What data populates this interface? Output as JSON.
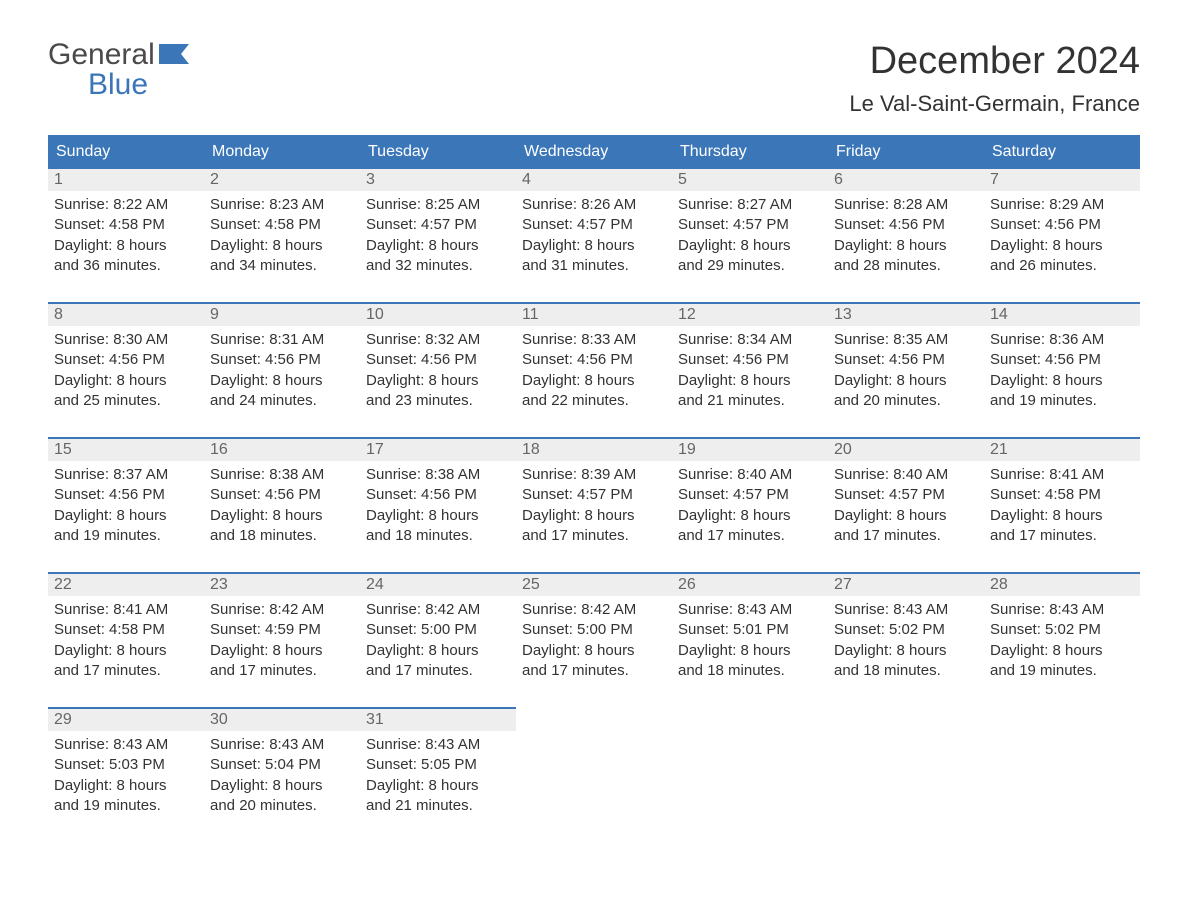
{
  "brand": {
    "general": "General",
    "blue": "Blue"
  },
  "title": "December 2024",
  "location": "Le Val-Saint-Germain, France",
  "colors": {
    "header_bg": "#3a76b8",
    "header_text": "#ffffff",
    "daynum_bg": "#eeeeee",
    "daynum_text": "#666666",
    "body_text": "#333333",
    "border": "#3a76b8",
    "page_bg": "#ffffff",
    "logo_gray": "#4a4a4a",
    "logo_blue": "#3a76b8"
  },
  "layout": {
    "columns": 7,
    "cell_font_size_pt": 11,
    "header_font_size_pt": 12,
    "title_font_size_pt": 28,
    "location_font_size_pt": 16
  },
  "day_headers": [
    "Sunday",
    "Monday",
    "Tuesday",
    "Wednesday",
    "Thursday",
    "Friday",
    "Saturday"
  ],
  "weeks": [
    [
      {
        "n": "1",
        "sunrise": "Sunrise: 8:22 AM",
        "sunset": "Sunset: 4:58 PM",
        "daylight": "Daylight: 8 hours and 36 minutes."
      },
      {
        "n": "2",
        "sunrise": "Sunrise: 8:23 AM",
        "sunset": "Sunset: 4:58 PM",
        "daylight": "Daylight: 8 hours and 34 minutes."
      },
      {
        "n": "3",
        "sunrise": "Sunrise: 8:25 AM",
        "sunset": "Sunset: 4:57 PM",
        "daylight": "Daylight: 8 hours and 32 minutes."
      },
      {
        "n": "4",
        "sunrise": "Sunrise: 8:26 AM",
        "sunset": "Sunset: 4:57 PM",
        "daylight": "Daylight: 8 hours and 31 minutes."
      },
      {
        "n": "5",
        "sunrise": "Sunrise: 8:27 AM",
        "sunset": "Sunset: 4:57 PM",
        "daylight": "Daylight: 8 hours and 29 minutes."
      },
      {
        "n": "6",
        "sunrise": "Sunrise: 8:28 AM",
        "sunset": "Sunset: 4:56 PM",
        "daylight": "Daylight: 8 hours and 28 minutes."
      },
      {
        "n": "7",
        "sunrise": "Sunrise: 8:29 AM",
        "sunset": "Sunset: 4:56 PM",
        "daylight": "Daylight: 8 hours and 26 minutes."
      }
    ],
    [
      {
        "n": "8",
        "sunrise": "Sunrise: 8:30 AM",
        "sunset": "Sunset: 4:56 PM",
        "daylight": "Daylight: 8 hours and 25 minutes."
      },
      {
        "n": "9",
        "sunrise": "Sunrise: 8:31 AM",
        "sunset": "Sunset: 4:56 PM",
        "daylight": "Daylight: 8 hours and 24 minutes."
      },
      {
        "n": "10",
        "sunrise": "Sunrise: 8:32 AM",
        "sunset": "Sunset: 4:56 PM",
        "daylight": "Daylight: 8 hours and 23 minutes."
      },
      {
        "n": "11",
        "sunrise": "Sunrise: 8:33 AM",
        "sunset": "Sunset: 4:56 PM",
        "daylight": "Daylight: 8 hours and 22 minutes."
      },
      {
        "n": "12",
        "sunrise": "Sunrise: 8:34 AM",
        "sunset": "Sunset: 4:56 PM",
        "daylight": "Daylight: 8 hours and 21 minutes."
      },
      {
        "n": "13",
        "sunrise": "Sunrise: 8:35 AM",
        "sunset": "Sunset: 4:56 PM",
        "daylight": "Daylight: 8 hours and 20 minutes."
      },
      {
        "n": "14",
        "sunrise": "Sunrise: 8:36 AM",
        "sunset": "Sunset: 4:56 PM",
        "daylight": "Daylight: 8 hours and 19 minutes."
      }
    ],
    [
      {
        "n": "15",
        "sunrise": "Sunrise: 8:37 AM",
        "sunset": "Sunset: 4:56 PM",
        "daylight": "Daylight: 8 hours and 19 minutes."
      },
      {
        "n": "16",
        "sunrise": "Sunrise: 8:38 AM",
        "sunset": "Sunset: 4:56 PM",
        "daylight": "Daylight: 8 hours and 18 minutes."
      },
      {
        "n": "17",
        "sunrise": "Sunrise: 8:38 AM",
        "sunset": "Sunset: 4:56 PM",
        "daylight": "Daylight: 8 hours and 18 minutes."
      },
      {
        "n": "18",
        "sunrise": "Sunrise: 8:39 AM",
        "sunset": "Sunset: 4:57 PM",
        "daylight": "Daylight: 8 hours and 17 minutes."
      },
      {
        "n": "19",
        "sunrise": "Sunrise: 8:40 AM",
        "sunset": "Sunset: 4:57 PM",
        "daylight": "Daylight: 8 hours and 17 minutes."
      },
      {
        "n": "20",
        "sunrise": "Sunrise: 8:40 AM",
        "sunset": "Sunset: 4:57 PM",
        "daylight": "Daylight: 8 hours and 17 minutes."
      },
      {
        "n": "21",
        "sunrise": "Sunrise: 8:41 AM",
        "sunset": "Sunset: 4:58 PM",
        "daylight": "Daylight: 8 hours and 17 minutes."
      }
    ],
    [
      {
        "n": "22",
        "sunrise": "Sunrise: 8:41 AM",
        "sunset": "Sunset: 4:58 PM",
        "daylight": "Daylight: 8 hours and 17 minutes."
      },
      {
        "n": "23",
        "sunrise": "Sunrise: 8:42 AM",
        "sunset": "Sunset: 4:59 PM",
        "daylight": "Daylight: 8 hours and 17 minutes."
      },
      {
        "n": "24",
        "sunrise": "Sunrise: 8:42 AM",
        "sunset": "Sunset: 5:00 PM",
        "daylight": "Daylight: 8 hours and 17 minutes."
      },
      {
        "n": "25",
        "sunrise": "Sunrise: 8:42 AM",
        "sunset": "Sunset: 5:00 PM",
        "daylight": "Daylight: 8 hours and 17 minutes."
      },
      {
        "n": "26",
        "sunrise": "Sunrise: 8:43 AM",
        "sunset": "Sunset: 5:01 PM",
        "daylight": "Daylight: 8 hours and 18 minutes."
      },
      {
        "n": "27",
        "sunrise": "Sunrise: 8:43 AM",
        "sunset": "Sunset: 5:02 PM",
        "daylight": "Daylight: 8 hours and 18 minutes."
      },
      {
        "n": "28",
        "sunrise": "Sunrise: 8:43 AM",
        "sunset": "Sunset: 5:02 PM",
        "daylight": "Daylight: 8 hours and 19 minutes."
      }
    ],
    [
      {
        "n": "29",
        "sunrise": "Sunrise: 8:43 AM",
        "sunset": "Sunset: 5:03 PM",
        "daylight": "Daylight: 8 hours and 19 minutes."
      },
      {
        "n": "30",
        "sunrise": "Sunrise: 8:43 AM",
        "sunset": "Sunset: 5:04 PM",
        "daylight": "Daylight: 8 hours and 20 minutes."
      },
      {
        "n": "31",
        "sunrise": "Sunrise: 8:43 AM",
        "sunset": "Sunset: 5:05 PM",
        "daylight": "Daylight: 8 hours and 21 minutes."
      },
      null,
      null,
      null,
      null
    ]
  ]
}
